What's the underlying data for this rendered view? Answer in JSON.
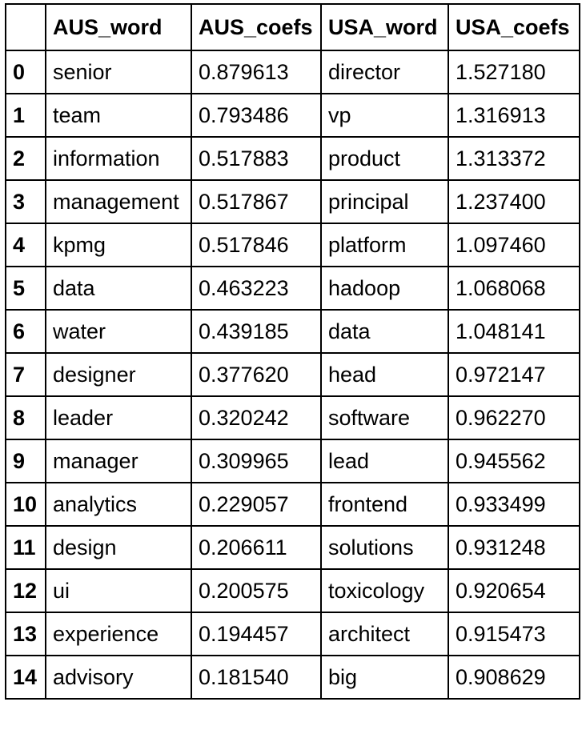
{
  "table": {
    "columns": [
      "",
      "AUS_word",
      "AUS_coefs",
      "USA_word",
      "USA_coefs"
    ],
    "rows": [
      [
        "0",
        "senior",
        "0.879613",
        "director",
        "1.527180"
      ],
      [
        "1",
        "team",
        "0.793486",
        "vp",
        "1.316913"
      ],
      [
        "2",
        "information",
        "0.517883",
        "product",
        "1.313372"
      ],
      [
        "3",
        "management",
        "0.517867",
        "principal",
        "1.237400"
      ],
      [
        "4",
        "kpmg",
        "0.517846",
        "platform",
        "1.097460"
      ],
      [
        "5",
        "data",
        "0.463223",
        "hadoop",
        "1.068068"
      ],
      [
        "6",
        "water",
        "0.439185",
        "data",
        "1.048141"
      ],
      [
        "7",
        "designer",
        "0.377620",
        "head",
        "0.972147"
      ],
      [
        "8",
        "leader",
        "0.320242",
        "software",
        "0.962270"
      ],
      [
        "9",
        "manager",
        "0.309965",
        "lead",
        "0.945562"
      ],
      [
        "10",
        "analytics",
        "0.229057",
        "frontend",
        "0.933499"
      ],
      [
        "11",
        "design",
        "0.206611",
        "solutions",
        "0.931248"
      ],
      [
        "12",
        "ui",
        "0.200575",
        "toxicology",
        "0.920654"
      ],
      [
        "13",
        "experience",
        "0.194457",
        "architect",
        "0.915473"
      ],
      [
        "14",
        "advisory",
        "0.181540",
        "big",
        "0.908629"
      ]
    ]
  }
}
